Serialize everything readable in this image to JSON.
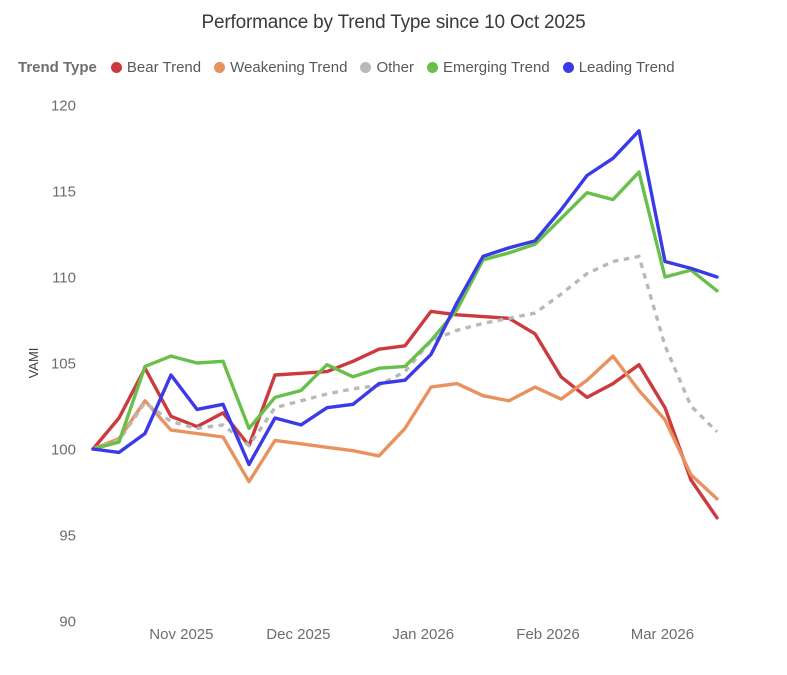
{
  "title": "Performance by Trend Type since 10 Oct 2025",
  "legend": {
    "label": "Trend Type"
  },
  "y_axis": {
    "label": "VAMI",
    "ticks": [
      90,
      95,
      100,
      105,
      110,
      115,
      120
    ]
  },
  "x_axis": {
    "ticks": [
      {
        "label": "Nov 2025",
        "pos": 3.4
      },
      {
        "label": "Dec 2025",
        "pos": 7.9
      },
      {
        "label": "Jan 2026",
        "pos": 12.7
      },
      {
        "label": "Feb 2026",
        "pos": 17.5
      },
      {
        "label": "Mar 2026",
        "pos": 21.9
      }
    ]
  },
  "chart_data": {
    "type": "line",
    "title": "Performance by Trend Type since 10 Oct 2025",
    "xlabel": "",
    "ylabel": "VAMI",
    "ylim": [
      90,
      120
    ],
    "grid": false,
    "legend_position": "top",
    "categories": [
      "2025-10-10",
      "2025-10-17",
      "2025-10-24",
      "2025-10-31",
      "2025-11-07",
      "2025-11-14",
      "2025-11-21",
      "2025-11-28",
      "2025-12-05",
      "2025-12-12",
      "2025-12-19",
      "2025-12-26",
      "2026-01-02",
      "2026-01-09",
      "2026-01-16",
      "2026-01-23",
      "2026-01-30",
      "2026-02-06",
      "2026-02-13",
      "2026-02-20",
      "2026-02-27",
      "2026-03-06",
      "2026-03-13",
      "2026-03-20",
      "2026-03-27"
    ],
    "series": [
      {
        "name": "Bear Trend",
        "color": "#cb3a3d",
        "style": "solid",
        "values": [
          100,
          101.8,
          104.7,
          101.9,
          101.3,
          102.1,
          100.2,
          104.3,
          104.4,
          104.5,
          105.1,
          105.8,
          106.0,
          108.0,
          107.8,
          107.7,
          107.6,
          106.7,
          104.2,
          103.0,
          103.8,
          104.9,
          102.4,
          98.2,
          96.0
        ]
      },
      {
        "name": "Weakening Trend",
        "color": "#ea9160",
        "style": "solid",
        "values": [
          100,
          100.6,
          102.8,
          101.1,
          100.9,
          100.7,
          98.1,
          100.5,
          100.3,
          100.1,
          99.9,
          99.6,
          101.2,
          103.6,
          103.8,
          103.1,
          102.8,
          103.6,
          102.9,
          104.0,
          105.4,
          103.4,
          101.7,
          98.5,
          97.1
        ]
      },
      {
        "name": "Other",
        "color": "#b9b9b9",
        "style": "dashed",
        "values": [
          100,
          100.5,
          102.7,
          101.6,
          101.2,
          101.4,
          100.2,
          102.4,
          102.8,
          103.2,
          103.5,
          103.7,
          104.5,
          106.3,
          106.9,
          107.3,
          107.6,
          107.9,
          109.0,
          110.2,
          110.9,
          111.2,
          106.0,
          102.5,
          101.0
        ]
      },
      {
        "name": "Emerging Trend",
        "color": "#68c04b",
        "style": "solid",
        "values": [
          100,
          100.4,
          104.8,
          105.4,
          105.0,
          105.1,
          101.2,
          103.0,
          103.4,
          104.9,
          104.2,
          104.7,
          104.8,
          106.3,
          108.1,
          111.0,
          111.4,
          111.9,
          113.4,
          114.9,
          114.5,
          116.1,
          110.0,
          110.4,
          109.2
        ]
      },
      {
        "name": "Leading Trend",
        "color": "#3a3ae6",
        "style": "solid",
        "values": [
          100,
          99.8,
          100.9,
          104.3,
          102.3,
          102.6,
          99.1,
          101.8,
          101.4,
          102.4,
          102.6,
          103.8,
          104.0,
          105.5,
          108.5,
          111.2,
          111.7,
          112.1,
          113.9,
          115.9,
          116.9,
          118.5,
          110.9,
          110.5,
          110.0
        ]
      }
    ]
  }
}
